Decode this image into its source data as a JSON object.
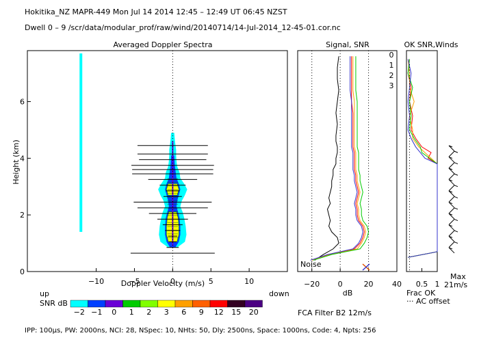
{
  "header": {
    "line1": "Hokitika_NZ   MAPR-449   Mon Jul 14 2014 12:45 – 12:49 UT 06:45 NZST",
    "line2": "Dwell   0 –   9    /scr/data/modular_prof/raw/wind/20140714/14-Jul-2014_12-45-01.cor.nc"
  },
  "footer": {
    "params": "IPP: 100μs,  PW: 2000ns,  NCI:  28,  NSpec: 10, NHts: 50,  Dly: 2500ns,  Space: 1000ns,  Code: 4,  Npts: 256"
  },
  "snr_legend": {
    "label": "SNR dB",
    "labels": [
      "−2",
      "−1",
      "0",
      "1",
      "2",
      "3",
      "6",
      "9",
      "12",
      "15",
      "20"
    ],
    "colors": [
      "#00ffff",
      "#0040ff",
      "#6a00d6",
      "#00cc00",
      "#80ff00",
      "#ffff00",
      "#ffa000",
      "#ff6000",
      "#ff0000",
      "#330022",
      "#4b0082"
    ]
  },
  "chart_data": [
    {
      "type": "heatmap",
      "title": "Averaged Doppler Spectra",
      "xlabel": "Doppler Velocity (m/s)",
      "ylabel": "Height (km)",
      "xlim": [
        -19,
        15
      ],
      "ylim": [
        0,
        7.8
      ],
      "xticks": [
        -10,
        -5,
        0,
        5,
        10
      ],
      "yticks": [
        0,
        2,
        4,
        6
      ],
      "x_left_label": "up",
      "x_right_label": "down",
      "ground_clutter_line": {
        "x": -12,
        "y_from": 1.4,
        "y_to": 7.7
      },
      "velocity_error_bars": [
        {
          "h": 0.65,
          "x0": -5.5,
          "x1": 5.5
        },
        {
          "h": 0.85,
          "x0": -0.8,
          "x1": 0.8
        },
        {
          "h": 1.05,
          "x0": -0.5,
          "x1": 0.5
        },
        {
          "h": 1.25,
          "x0": -0.6,
          "x1": 0.6
        },
        {
          "h": 1.45,
          "x0": -1,
          "x1": 1
        },
        {
          "h": 1.65,
          "x0": -1.3,
          "x1": 1.3
        },
        {
          "h": 1.85,
          "x0": -2,
          "x1": 2
        },
        {
          "h": 2.05,
          "x0": -3.1,
          "x1": 3.1
        },
        {
          "h": 2.25,
          "x0": -4.6,
          "x1": 4.6
        },
        {
          "h": 2.45,
          "x0": -5.1,
          "x1": 5.1
        },
        {
          "h": 2.65,
          "x0": -1.2,
          "x1": 1.2
        },
        {
          "h": 2.85,
          "x0": -0.9,
          "x1": 0.9
        },
        {
          "h": 3.05,
          "x0": -1.7,
          "x1": 1.7
        },
        {
          "h": 3.25,
          "x0": -3.2,
          "x1": 3.2
        },
        {
          "h": 3.45,
          "x0": -5.3,
          "x1": 5.3
        },
        {
          "h": 3.6,
          "x0": -5.3,
          "x1": 5.3
        },
        {
          "h": 3.75,
          "x0": -5.4,
          "x1": 5.4
        },
        {
          "h": 3.95,
          "x0": -4.4,
          "x1": 4.4
        },
        {
          "h": 4.15,
          "x0": -4.6,
          "x1": 4.6
        },
        {
          "h": 4.45,
          "x0": -4.6,
          "x1": 4.6
        }
      ],
      "spectra_envelope": {
        "heights": [
          0.85,
          1.05,
          1.3,
          1.6,
          1.9,
          2.1,
          2.3,
          2.5,
          2.7,
          2.9,
          3.1,
          3.3,
          3.5,
          3.7,
          3.9,
          4.1,
          4.3,
          4.6,
          4.9
        ],
        "outer": [
          0.6,
          1.6,
          1.8,
          1.7,
          1.5,
          1.3,
          1.0,
          1.2,
          1.6,
          1.9,
          1.5,
          1.0,
          0.9,
          0.6,
          0.5,
          0.45,
          0.45,
          0.3,
          0.2
        ],
        "mid": [
          0.35,
          0.8,
          1.0,
          1.0,
          0.9,
          0.7,
          0.5,
          0.6,
          0.8,
          1.0,
          0.8,
          0.5,
          0.4,
          0.3,
          0.25,
          0.2,
          0,
          0,
          0
        ],
        "core": [
          0,
          0.55,
          0.8,
          0.8,
          0.7,
          0.5,
          0,
          0,
          0.6,
          0.8,
          0.6,
          0,
          0,
          0,
          0,
          0,
          0,
          0,
          0
        ]
      }
    },
    {
      "type": "line",
      "title": "Signal, SNR",
      "xlabel": "dB",
      "xlim": [
        -30,
        40
      ],
      "xticks": [
        -20,
        0,
        20,
        40
      ],
      "noise_label": "Noise",
      "dotted_lines_x": [
        -20,
        0,
        20
      ],
      "heights": [
        0.4,
        0.6,
        0.8,
        1.0,
        1.2,
        1.4,
        1.6,
        1.8,
        2.0,
        2.2,
        2.4,
        2.6,
        2.8,
        3.0,
        3.2,
        3.4,
        3.6,
        3.8,
        4.0,
        4.2,
        4.4,
        4.6,
        4.8,
        5.2,
        5.6,
        6.0,
        6.4,
        6.8,
        7.2,
        7.6
      ],
      "signal_black": [
        -18,
        -12,
        -5,
        -1,
        -2,
        -6,
        -8,
        -7,
        -8,
        -9,
        -7,
        -8,
        -7,
        -6,
        -6,
        -5,
        -5,
        -3,
        -3,
        -2,
        -2,
        -3,
        -3,
        -2,
        -3,
        -2,
        -1,
        -2,
        -2,
        -1
      ],
      "snr_series": [
        {
          "name": "0",
          "color": "#ff0000",
          "values": [
            -20,
            -8,
            10,
            14,
            16,
            17,
            16,
            13,
            12,
            12,
            11,
            12,
            13,
            12,
            11,
            11,
            10,
            10,
            10,
            10,
            9,
            9,
            9,
            9,
            9,
            8,
            8,
            8,
            8,
            8
          ]
        },
        {
          "name": "1",
          "color": "#ffa000",
          "values": [
            -20,
            -7,
            12,
            15,
            17,
            18,
            17,
            14,
            13,
            13,
            12,
            13,
            14,
            13,
            12,
            12,
            11,
            11,
            11,
            11,
            10,
            10,
            10,
            10,
            10,
            10,
            9,
            9,
            9,
            9
          ]
        },
        {
          "name": "2",
          "color": "#00cc00",
          "values": [
            -19,
            -6,
            14,
            17,
            19,
            20,
            19,
            16,
            15,
            15,
            14,
            15,
            16,
            15,
            14,
            14,
            13,
            13,
            13,
            13,
            12,
            12,
            12,
            12,
            12,
            12,
            11,
            11,
            11,
            11
          ]
        },
        {
          "name": "3",
          "color": "#3333cc",
          "values": [
            -21,
            -9,
            9,
            13,
            15,
            16,
            15,
            12,
            11,
            11,
            10,
            11,
            12,
            11,
            10,
            10,
            9,
            9,
            9,
            9,
            8,
            8,
            8,
            8,
            8,
            8,
            7,
            7,
            7,
            7
          ]
        }
      ]
    },
    {
      "type": "line",
      "title": "OK SNR,Winds",
      "xlabel": "Frac OK",
      "xlim": [
        0,
        1
      ],
      "xticks": [
        0.5,
        1
      ],
      "xtick_labels": [
        "0.5",
        "1"
      ],
      "legend": [
        "0",
        "1",
        "2",
        "3"
      ],
      "ac_offset_label": "AC offset",
      "max_label": "Max",
      "max_value_label": "21m/s",
      "ok_series": [
        {
          "name": "0",
          "color": "#ff0000",
          "heights": [
            0.5,
            0.7,
            3.8,
            4.0,
            4.2,
            4.4,
            4.7,
            5.0,
            5.5,
            6.0,
            6.5,
            7.0,
            7.5
          ],
          "values": [
            0.05,
            1.0,
            1.0,
            0.7,
            0.8,
            0.5,
            0.3,
            0.15,
            0.2,
            0.1,
            0.15,
            0.05,
            0.1
          ]
        },
        {
          "name": "1",
          "color": "#ffa000",
          "heights": [
            0.5,
            0.7,
            3.8,
            4.0,
            4.2,
            4.4,
            4.7,
            5.0,
            5.5,
            6.0,
            6.5,
            7.0,
            7.5
          ],
          "values": [
            0.05,
            1.0,
            1.0,
            0.8,
            0.6,
            0.4,
            0.2,
            0.2,
            0.1,
            0.25,
            0.1,
            0.1,
            0.05
          ]
        },
        {
          "name": "2",
          "color": "#00cc00",
          "heights": [
            0.5,
            0.7,
            3.8,
            4.0,
            4.2,
            4.4,
            4.7,
            5.0,
            5.5,
            6.0,
            6.5,
            7.0,
            7.5
          ],
          "values": [
            0.05,
            1.0,
            1.0,
            0.75,
            0.5,
            0.45,
            0.25,
            0.1,
            0.15,
            0.1,
            0.2,
            0.05,
            0.1
          ]
        },
        {
          "name": "3",
          "color": "#3333cc",
          "heights": [
            0.5,
            0.7,
            3.8,
            4.0,
            4.2,
            4.4,
            4.7,
            5.0,
            5.5,
            6.0,
            6.5,
            7.0,
            7.5
          ],
          "values": [
            0.05,
            1.0,
            1.0,
            0.6,
            0.45,
            0.3,
            0.15,
            0.05,
            0.1,
            0.05,
            0.1,
            0.15,
            0.05
          ]
        }
      ],
      "wind_barb_heights": [
        0.75,
        0.95,
        1.15,
        1.35,
        1.55,
        1.75,
        1.95,
        2.15,
        2.35,
        2.55,
        2.75,
        2.95,
        3.15,
        3.35,
        3.55,
        3.75,
        3.95,
        4.15,
        4.35
      ]
    }
  ],
  "filter_label": "FCA Filter B2 12m/s"
}
